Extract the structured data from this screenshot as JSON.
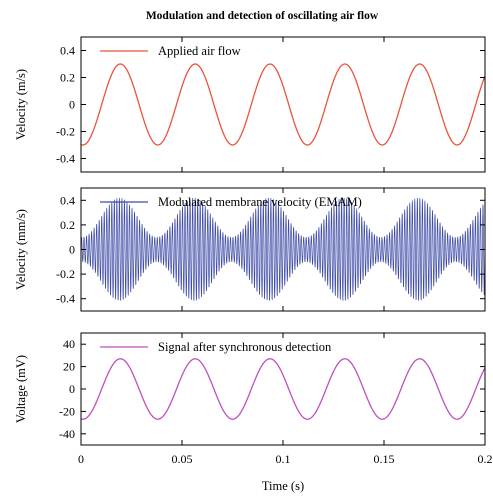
{
  "figure": {
    "title": "Modulation and detection of oscillating air flow"
  },
  "chart_data": [
    {
      "type": "line",
      "ylabel": "Velocity (m/s)",
      "xlim": [
        0,
        0.2
      ],
      "ylim": [
        -0.5,
        0.5
      ],
      "yticks": [
        0.4,
        0.2,
        0,
        -0.2,
        -0.4
      ],
      "ytick_labels": [
        "0.4",
        "0.2",
        "0",
        "-0.2",
        "-0.4"
      ],
      "legend": {
        "position": "top-left"
      },
      "series": [
        {
          "name": "Applied air flow",
          "color": "#e8553e",
          "kind": "sine",
          "frequency_hz": 27,
          "amplitude": 0.3,
          "x_of_first_peak": 0.0195
        }
      ]
    },
    {
      "type": "line",
      "ylabel": "Velocity (mm/s)",
      "xlim": [
        0,
        0.2
      ],
      "ylim": [
        -0.5,
        0.5
      ],
      "yticks": [
        0.4,
        0.2,
        0,
        -0.2,
        -0.4
      ],
      "ytick_labels": [
        "0.4",
        "0.2",
        "0",
        "-0.2",
        "-0.4"
      ],
      "legend": {
        "position": "top-left"
      },
      "series": [
        {
          "name": "Modulated membrane velocity (EMAM)",
          "color": "#3d4aa6",
          "kind": "amplitude-modulated carrier",
          "envelope_max": 0.42,
          "envelope_min": 0.1,
          "envelope_period_s": 0.037,
          "envelope_first_min_s": 0.0005,
          "carrier_frequency_hz": 800
        }
      ]
    },
    {
      "type": "line",
      "ylabel": "Voltage (mV)",
      "xlabel": "Time (s)",
      "xlim": [
        0,
        0.2
      ],
      "ylim": [
        -50,
        50
      ],
      "xticks": [
        0,
        0.05,
        0.1,
        0.15,
        0.2
      ],
      "xtick_labels": [
        "0",
        "0.05",
        "0.1",
        "0.15",
        "0.2"
      ],
      "yticks": [
        40,
        20,
        0,
        -20,
        -40
      ],
      "ytick_labels": [
        "40",
        "20",
        "0",
        "-20",
        "-40"
      ],
      "legend": {
        "position": "top-left"
      },
      "series": [
        {
          "name": "Signal after synchronous detection",
          "color": "#c04fbf",
          "kind": "sine",
          "frequency_hz": 27,
          "amplitude": 27,
          "x_of_first_peak": 0.0195
        }
      ]
    }
  ]
}
